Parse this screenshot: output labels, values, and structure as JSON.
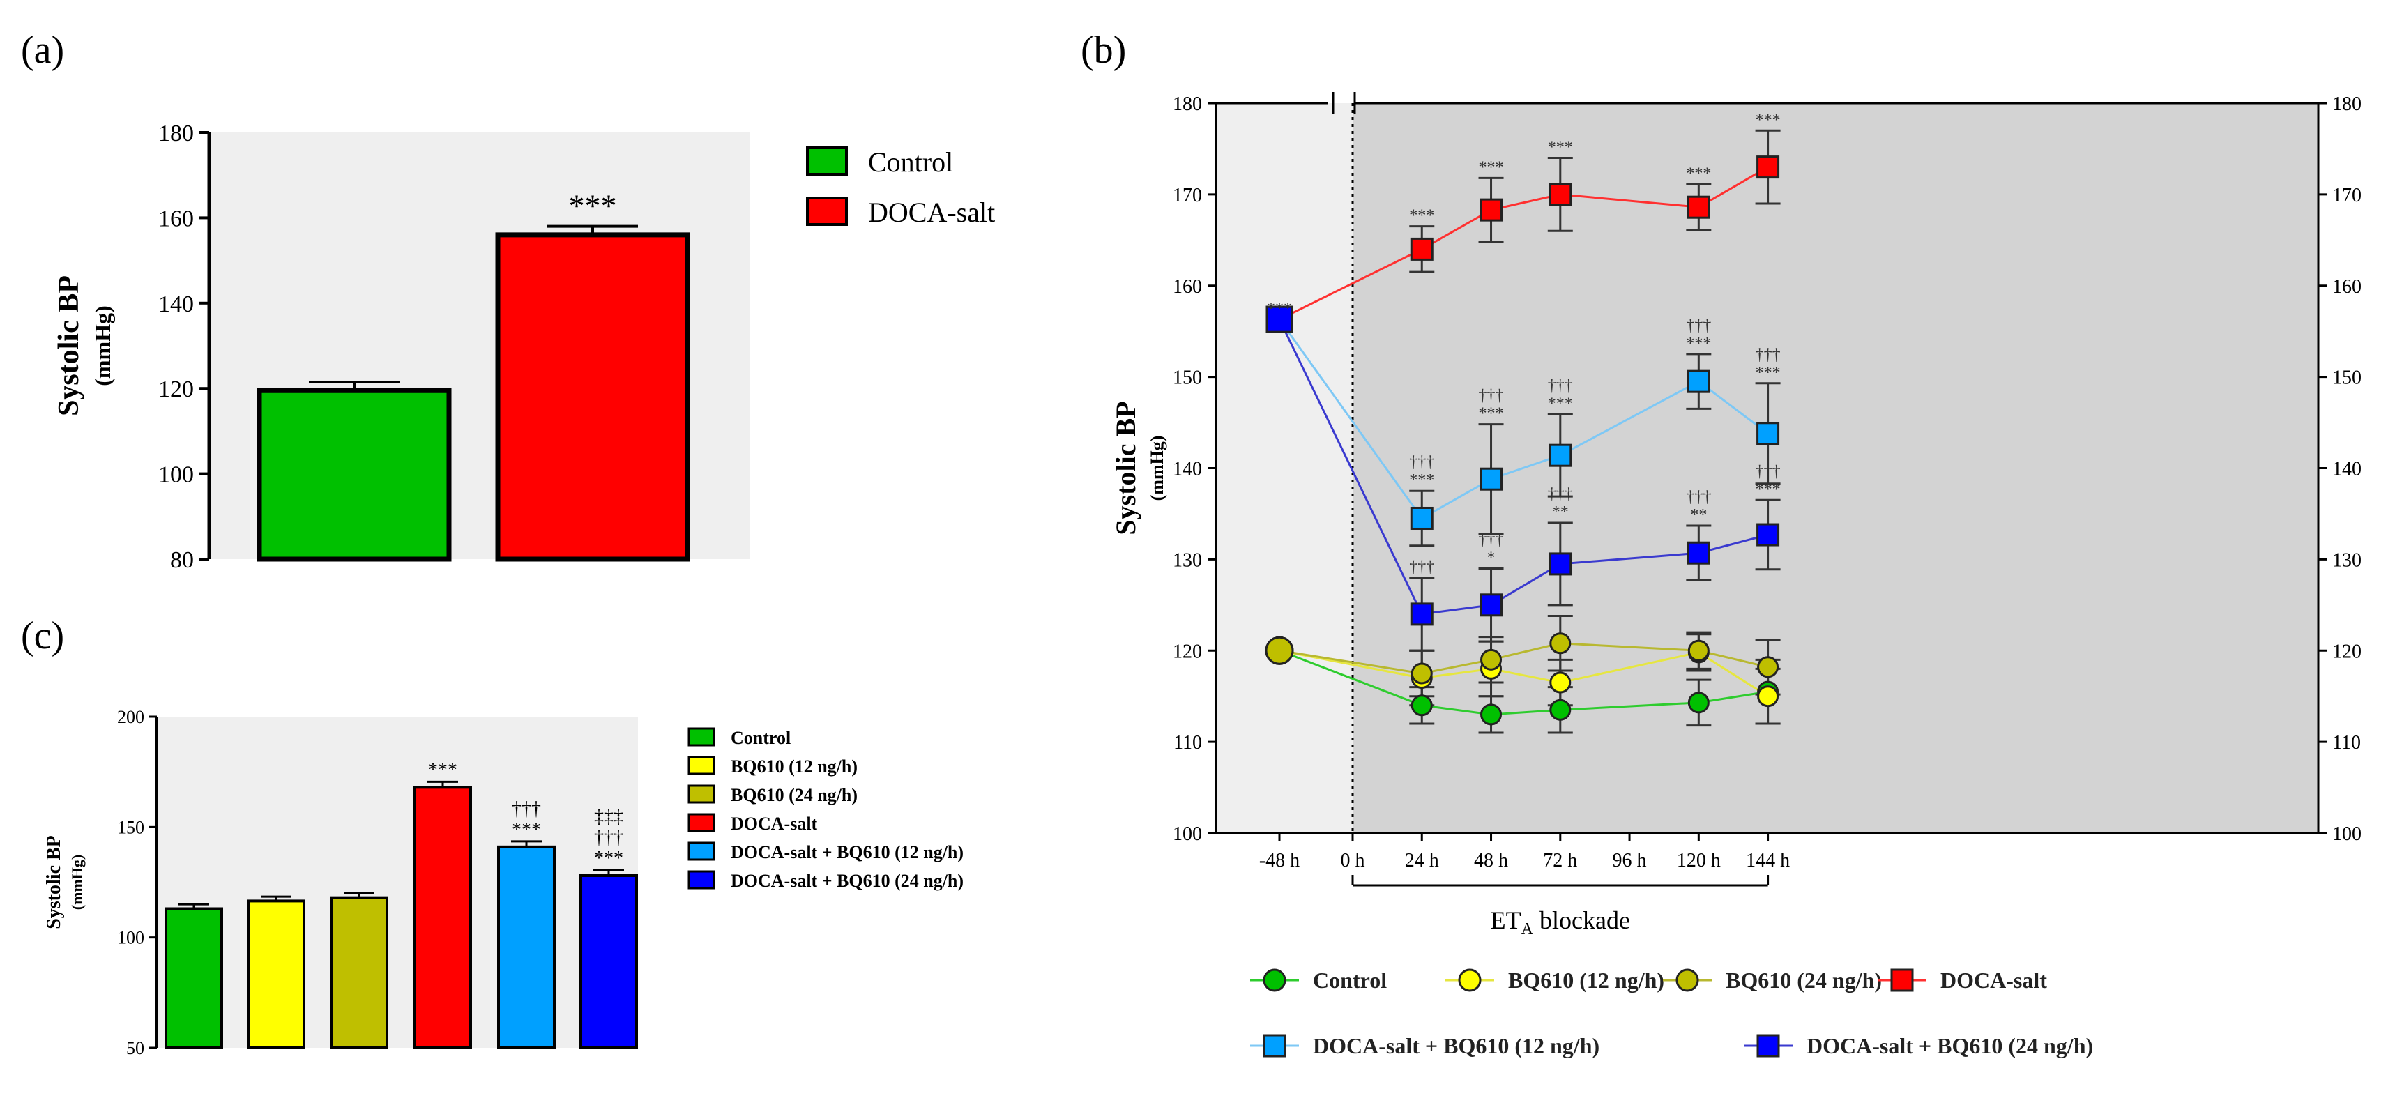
{
  "colors": {
    "control": "#00C000",
    "bq610_12": "#FFFF00",
    "bq610_24": "#BFBF00",
    "doca_salt": "#FF0000",
    "doca_bq12": "#00A0FF",
    "doca_bq24": "#0000FF",
    "line_bq12": "#7EC8F5",
    "line_bq24": "#3A3ACF",
    "line_doca": "#FF3030",
    "line_control": "#2ECC2E",
    "line_y12": "#E6E640",
    "line_y24": "#B8B830",
    "plot_bg_light": "#EFEFEF",
    "plot_bg_dark": "#D3D3D3"
  },
  "chart_data": [
    {
      "panel_label": "(a)",
      "type": "bar",
      "ylabel": "Systolic BP",
      "ylabel_unit": "(mmHg)",
      "ylim": [
        80,
        180
      ],
      "yticks": [
        80,
        100,
        120,
        140,
        160,
        180
      ],
      "categories": [
        "Control",
        "DOCA-salt"
      ],
      "values": [
        119.5,
        156
      ],
      "errors": [
        2,
        2
      ],
      "significance": [
        "",
        "***"
      ],
      "legend": [
        "Control",
        "DOCA-salt"
      ]
    },
    {
      "panel_label": "(b)",
      "type": "line",
      "ylabel": "Systolic BP",
      "ylabel_unit": "(mmHg)",
      "ylim": [
        100,
        180
      ],
      "yticks": [
        100,
        110,
        120,
        130,
        140,
        150,
        160,
        170,
        180
      ],
      "x": [
        -48,
        24,
        48,
        72,
        120,
        144
      ],
      "xtick_labels": [
        "-48 h",
        "0 h",
        "24 h",
        "48 h",
        "72 h",
        "96 h",
        "120 h",
        "144 h"
      ],
      "xlabel": "ET",
      "xlabel_sub": "A",
      "xlabel_rest": " blockade",
      "series": [
        {
          "name": "Control",
          "marker": "circle",
          "values": [
            120,
            114,
            113,
            113.5,
            114.3,
            115.5
          ],
          "errors": [
            0,
            2,
            2,
            2.5,
            2.5,
            3.5
          ]
        },
        {
          "name": "BQ610 (12 ng/h)",
          "marker": "circle",
          "values": [
            120,
            117,
            118,
            116.5,
            119.8,
            115
          ],
          "errors": [
            0,
            3,
            3,
            2.5,
            2,
            3
          ]
        },
        {
          "name": "BQ610 (24 ng/h)",
          "marker": "circle",
          "values": [
            120,
            117.5,
            119,
            120.8,
            120,
            118.2
          ],
          "errors": [
            0,
            2.5,
            2.5,
            3,
            2,
            3
          ]
        },
        {
          "name": "DOCA-salt",
          "marker": "square",
          "values": [
            156.3,
            164,
            168.3,
            170,
            168.6,
            173
          ],
          "errors": [
            0,
            2.5,
            3.5,
            4,
            2.5,
            4
          ],
          "labels": [
            [
              "***"
            ],
            [
              "***"
            ],
            [
              "***"
            ],
            [
              "***"
            ],
            [
              "***"
            ],
            [
              "***"
            ]
          ]
        },
        {
          "name": "DOCA-salt + BQ610 (12 ng/h)",
          "marker": "square",
          "values": [
            156.3,
            134.5,
            138.8,
            141.4,
            149.5,
            143.8
          ],
          "errors": [
            0,
            3,
            6,
            4.5,
            3,
            5.5
          ],
          "labels": [
            [],
            [
              "†††",
              "***"
            ],
            [
              "†††",
              "***"
            ],
            [
              "†††",
              "***"
            ],
            [
              "†††",
              "***"
            ],
            [
              "†††",
              "***"
            ]
          ]
        },
        {
          "name": "DOCA-salt + BQ610 (24 ng/h)",
          "marker": "square",
          "values": [
            156.3,
            124,
            125,
            129.5,
            130.7,
            132.7
          ],
          "errors": [
            0,
            4,
            4,
            4.5,
            3,
            3.8
          ],
          "labels": [
            [],
            [
              "†††"
            ],
            [
              "†††",
              "*"
            ],
            [
              "†††",
              "**"
            ],
            [
              "†††",
              "**"
            ],
            [
              "†††",
              "***"
            ]
          ]
        }
      ]
    },
    {
      "panel_label": "(c)",
      "type": "bar",
      "ylabel": "Systolic BP",
      "ylabel_unit": "(mmHg)",
      "ylim": [
        50,
        200
      ],
      "yticks": [
        50,
        100,
        150,
        200
      ],
      "categories": [
        "Control",
        "BQ610 (12 ng/h)",
        "BQ610 (24 ng/h)",
        "DOCA-salt",
        "DOCA-salt + BQ610 (12 ng/h)",
        "DOCA-salt + BQ610 (24 ng/h)"
      ],
      "values": [
        113,
        116.5,
        118,
        168,
        141,
        128
      ],
      "errors": [
        2,
        2,
        2,
        2.5,
        2.5,
        2.5
      ],
      "significance": [
        [],
        [],
        [],
        [
          "***"
        ],
        [
          "†††",
          "***"
        ],
        [
          "‡‡‡",
          "†††",
          "***"
        ]
      ],
      "legend": [
        "Control",
        "BQ610 (12 ng/h)",
        "BQ610 (24 ng/h)",
        "DOCA-salt",
        "DOCA-salt + BQ610 (12 ng/h)",
        "DOCA-salt + BQ610 (24 ng/h)"
      ]
    }
  ]
}
